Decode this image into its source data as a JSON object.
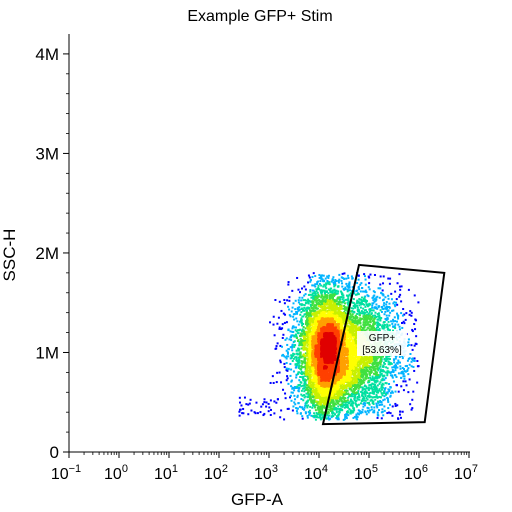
{
  "chart_data": {
    "type": "scatter",
    "subtype": "flow-cytometry-density-dot-plot",
    "title": "Example GFP+ Stim",
    "xlabel": "GFP-A",
    "ylabel": "SSC-H",
    "x_scale": "log",
    "x_range": [
      0.1,
      10000000
    ],
    "x_ticks": [
      {
        "value": 0.1,
        "base": "10",
        "exp": "−1"
      },
      {
        "value": 1,
        "base": "10",
        "exp": "0"
      },
      {
        "value": 10,
        "base": "10",
        "exp": "1"
      },
      {
        "value": 100,
        "base": "10",
        "exp": "2"
      },
      {
        "value": 1000,
        "base": "10",
        "exp": "3"
      },
      {
        "value": 10000,
        "base": "10",
        "exp": "4"
      },
      {
        "value": 100000,
        "base": "10",
        "exp": "5"
      },
      {
        "value": 1000000,
        "base": "10",
        "exp": "6"
      },
      {
        "value": 10000000,
        "base": "10",
        "exp": "7"
      }
    ],
    "y_scale": "linear",
    "y_range": [
      0,
      4200000
    ],
    "y_ticks": [
      {
        "value": 0,
        "label": "0"
      },
      {
        "value": 1000000,
        "label": "1M"
      },
      {
        "value": 2000000,
        "label": "2M"
      },
      {
        "value": 3000000,
        "label": "3M"
      },
      {
        "value": 4000000,
        "label": "4M"
      }
    ],
    "grid": false,
    "legend": "none",
    "colormap": [
      "#0000ff",
      "#00b4ff",
      "#00e0a0",
      "#40e040",
      "#c8f000",
      "#ffff00",
      "#ffa000",
      "#ff4000",
      "#e00000"
    ],
    "populations": [
      {
        "x_log10_center": 4.55,
        "y_center": 1000000,
        "x_log10_sd": 0.55,
        "y_sd": 330000,
        "weight": 0.55
      },
      {
        "x_log10_center": 4.15,
        "y_center": 1000000,
        "x_log10_sd": 0.22,
        "y_sd": 300000,
        "weight": 0.45
      }
    ],
    "x_population_range": [
      1000,
      1000000
    ],
    "y_population_range": [
      320000,
      1800000
    ],
    "gate": {
      "name": "GFP+",
      "percent": "[53.63%]",
      "vertices": [
        [
          12000,
          280000
        ],
        [
          63000,
          1880000
        ],
        [
          3200000,
          1800000
        ],
        [
          1300000,
          300000
        ]
      ]
    }
  }
}
